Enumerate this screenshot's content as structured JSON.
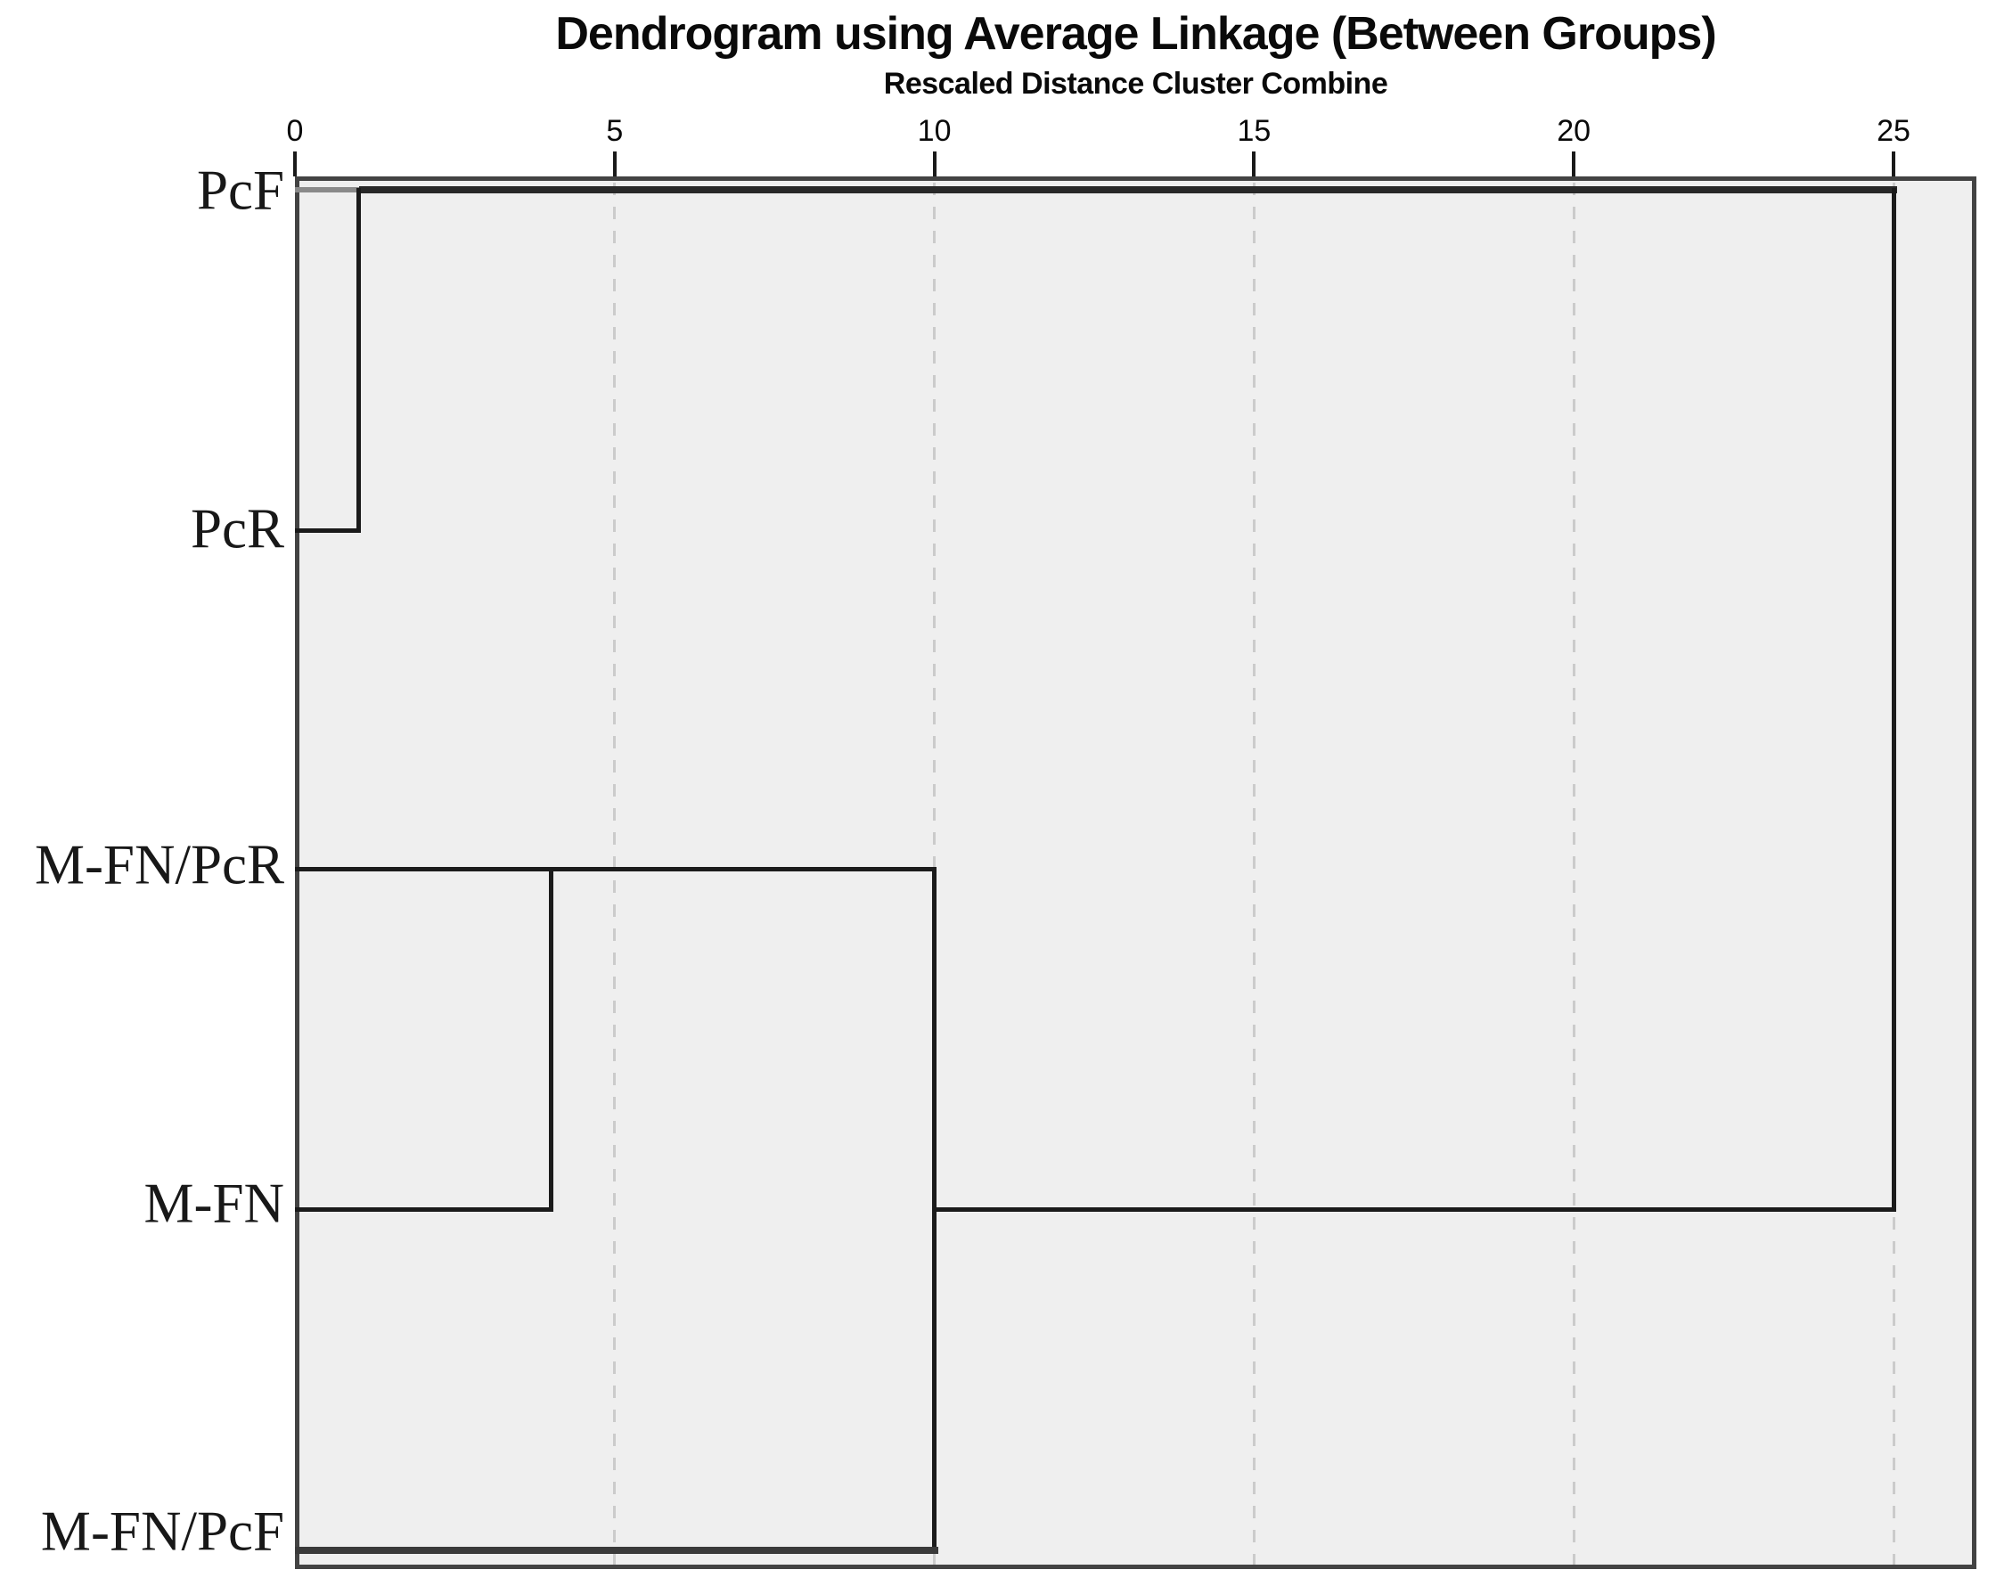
{
  "chart_data": {
    "type": "dendrogram",
    "orientation": "horizontal",
    "title": "Dendrogram using Average Linkage (Between Groups)",
    "axis_label": "Rescaled Distance Cluster Combine",
    "x_ticks": [
      "0",
      "5",
      "10",
      "15",
      "20",
      "25"
    ],
    "x_tick_values": [
      0,
      5,
      10,
      15,
      20,
      25
    ],
    "xlim": [
      0,
      25
    ],
    "grid": "dashed vertical gridlines at 5, 10, 15, 20, 25",
    "legend": "none",
    "leaves": [
      "PcF",
      "PcR",
      "M-FN/PcR",
      "M-FN",
      "M-FN/PcF"
    ],
    "merges": [
      {
        "join": [
          "PcF",
          "PcR"
        ],
        "rescaled_distance": 1
      },
      {
        "join": [
          "M-FN/PcR",
          "M-FN"
        ],
        "rescaled_distance": 4
      },
      {
        "join": [
          "M-FN/PcR+M-FN",
          "M-FN/PcF"
        ],
        "rescaled_distance": 10
      },
      {
        "join": [
          "PcF+PcR",
          "M-FN/PcR+M-FN+M-FN/PcF"
        ],
        "rescaled_distance": 25
      }
    ],
    "segments": [
      {
        "kind": "h",
        "row": 0,
        "d1": 0,
        "d2": 1,
        "stroke": "pcf_stub",
        "label": "PcF leaf line"
      },
      {
        "kind": "h",
        "row": 0,
        "d1": 1,
        "d2": 25,
        "stroke": "merged_top_line",
        "label": "PcF+PcR cluster line"
      },
      {
        "kind": "v",
        "d": 1,
        "row1": 0,
        "row2": 1,
        "stroke": "line",
        "label": "join PcF-PcR at 1"
      },
      {
        "kind": "h",
        "row": 1,
        "d1": 0,
        "d2": 1,
        "stroke": "line",
        "label": "PcR leaf line"
      },
      {
        "kind": "h",
        "row": 2,
        "d1": 0,
        "d2": 10,
        "stroke": "line",
        "label": "M-FN/PcR leaf + cluster line"
      },
      {
        "kind": "v",
        "d": 4,
        "row1": 2,
        "row2": 3,
        "stroke": "line",
        "label": "join M-FN/PcR - M-FN at 4"
      },
      {
        "kind": "h",
        "row": 3,
        "d1": 0,
        "d2": 4,
        "stroke": "line",
        "label": "M-FN leaf line"
      },
      {
        "kind": "v",
        "d": 10,
        "row1": 2,
        "row2": 4,
        "stroke": "line",
        "label": "join with M-FN/PcF at 10"
      },
      {
        "kind": "h",
        "row": 3,
        "d1": 10,
        "d2": 25,
        "stroke": "line",
        "label": "lower cluster line to final join"
      },
      {
        "kind": "h",
        "row": 4,
        "d1": 0,
        "d2": 10,
        "stroke": "bottom_leaf_line",
        "label": "M-FN/PcF leaf line"
      },
      {
        "kind": "v",
        "d": 25,
        "row1": 0,
        "row2": 3,
        "stroke": "line",
        "label": "final join at 25"
      }
    ],
    "colors": {
      "line": "#1b1b1b",
      "merged_top_line": "#282828",
      "pcf_stub": "#8a8a8a",
      "bottom_leaf_line": "#3a3a3a",
      "frame": "#434343",
      "grid": "#cbcbcb",
      "plot_bg": "#efefef",
      "page_bg": "#ffffff",
      "text": "#0a0a0a"
    }
  }
}
